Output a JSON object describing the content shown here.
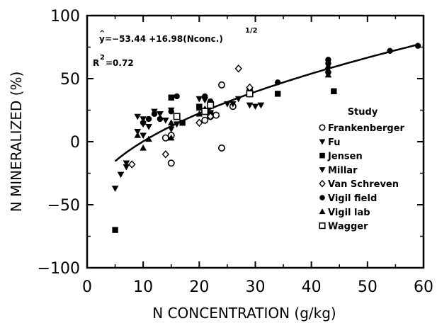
{
  "chart_data": {
    "type": "scatter",
    "xlabel": "N CONCENTRATION (g/kg)",
    "ylabel": "N MINERALIZED (%)",
    "xlim": [
      0,
      60
    ],
    "ylim": [
      -100,
      100
    ],
    "xticks": [
      "0",
      "10",
      "20",
      "30",
      "40",
      "50",
      "60"
    ],
    "yticks": [
      "100",
      "50",
      "0",
      "−50",
      "−100"
    ],
    "grid": false,
    "legend_title": "Study",
    "legend_position": "right",
    "equation": {
      "yhat": "y",
      "body": "=−53.44 +16.98(Nconc.)",
      "exponent": "1/2",
      "r2_prefix": "R",
      "r2_sup": "2",
      "r2_value": "=0.72"
    },
    "fit_curve": {
      "intercept": -53.44,
      "coef": 16.98,
      "x_range": [
        5,
        59
      ]
    },
    "series": [
      {
        "name": "Frankenberger",
        "marker": "open-circle",
        "points": [
          [
            21,
            17
          ],
          [
            22,
            20
          ],
          [
            23,
            21
          ],
          [
            24,
            45
          ],
          [
            24,
            -5
          ],
          [
            26,
            28
          ],
          [
            29,
            38
          ],
          [
            15,
            -17
          ],
          [
            15,
            5
          ],
          [
            14,
            3
          ]
        ]
      },
      {
        "name": "Fu",
        "marker": "filled-triangle-down",
        "points": [
          [
            5,
            -37
          ],
          [
            6,
            -26
          ],
          [
            7,
            -17
          ],
          [
            7,
            -20
          ],
          [
            9,
            20
          ],
          [
            10,
            18
          ],
          [
            10,
            14
          ],
          [
            11,
            12
          ],
          [
            13,
            22
          ],
          [
            14,
            17
          ],
          [
            15,
            10
          ],
          [
            16,
            14
          ],
          [
            20,
            28
          ],
          [
            21,
            24
          ],
          [
            22,
            23
          ],
          [
            25,
            30
          ],
          [
            26,
            30
          ],
          [
            29,
            29
          ],
          [
            30,
            28
          ],
          [
            31,
            29
          ]
        ]
      },
      {
        "name": "Jensen",
        "marker": "filled-square",
        "points": [
          [
            5,
            -70
          ],
          [
            15,
            35
          ],
          [
            17,
            15
          ],
          [
            20,
            27
          ],
          [
            22,
            22
          ],
          [
            29,
            40
          ],
          [
            34,
            38
          ],
          [
            44,
            40
          ]
        ]
      },
      {
        "name": "Millar",
        "marker": "filled-triangle-down",
        "points": [
          [
            9,
            8
          ],
          [
            10,
            5
          ],
          [
            12,
            24
          ],
          [
            13,
            22
          ],
          [
            15,
            25
          ],
          [
            20,
            34
          ],
          [
            21,
            33
          ],
          [
            22,
            30
          ],
          [
            27,
            34
          ]
        ]
      },
      {
        "name": "Van Schreven",
        "marker": "open-diamond",
        "points": [
          [
            8,
            -18
          ],
          [
            14,
            -10
          ],
          [
            20,
            15
          ],
          [
            22,
            20
          ],
          [
            27,
            58
          ],
          [
            29,
            43
          ]
        ]
      },
      {
        "name": "Vigil field",
        "marker": "filled-circle",
        "points": [
          [
            10,
            15
          ],
          [
            11,
            18
          ],
          [
            12,
            22
          ],
          [
            13,
            18
          ],
          [
            15,
            24
          ],
          [
            16,
            36
          ],
          [
            21,
            36
          ],
          [
            22,
            32
          ],
          [
            34,
            47
          ],
          [
            43,
            55
          ],
          [
            43,
            62
          ],
          [
            43,
            65
          ],
          [
            54,
            72
          ],
          [
            59,
            76
          ]
        ]
      },
      {
        "name": "Vigil lab",
        "marker": "filled-triangle-up",
        "points": [
          [
            9,
            5
          ],
          [
            10,
            -5
          ],
          [
            11,
            2
          ],
          [
            15,
            3
          ],
          [
            15,
            15
          ],
          [
            20,
            22
          ],
          [
            21,
            26
          ],
          [
            43,
            53
          ],
          [
            43,
            57
          ],
          [
            43,
            60
          ]
        ]
      },
      {
        "name": "Wagger",
        "marker": "open-square",
        "points": [
          [
            16,
            20
          ],
          [
            21,
            24
          ],
          [
            22,
            29
          ],
          [
            29,
            38
          ]
        ]
      }
    ]
  }
}
